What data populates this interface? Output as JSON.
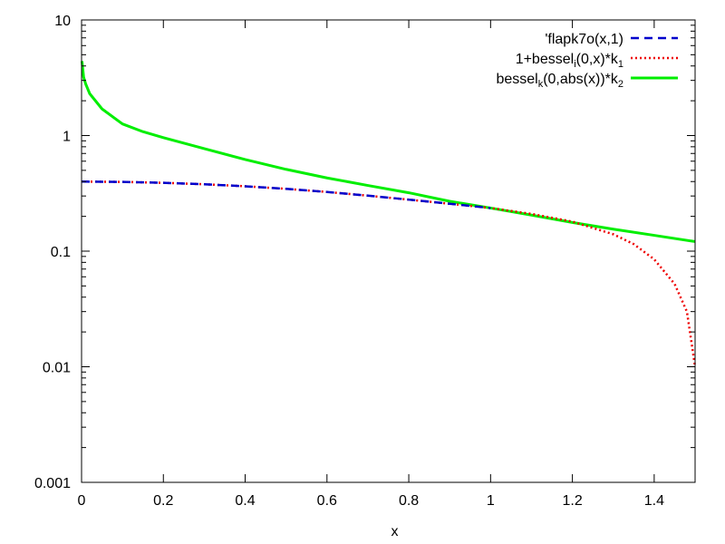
{
  "chart_data": {
    "type": "line",
    "title": "",
    "xlabel": "x",
    "ylabel": "",
    "xlim": [
      0,
      1.5
    ],
    "ylim": [
      0.001,
      10
    ],
    "yscale": "log",
    "grid": false,
    "legend_position": "top-right",
    "x_ticks": [
      0,
      0.2,
      0.4,
      0.6,
      0.8,
      1.0,
      1.2,
      1.4
    ],
    "x_tick_labels": [
      "0",
      "0.2",
      "0.4",
      "0.6",
      "0.8",
      "1",
      "1.2",
      "1.4"
    ],
    "y_ticks": [
      0.001,
      0.01,
      0.1,
      1,
      10
    ],
    "y_tick_labels": [
      "0.001",
      "0.01",
      "0.1",
      "1",
      "10"
    ],
    "series": [
      {
        "name": "'flapk7o(x,1)",
        "color": "#0000cc",
        "style": "dashed",
        "x": [
          0,
          0.1,
          0.2,
          0.3,
          0.4,
          0.5,
          0.6,
          0.7,
          0.8,
          0.9,
          1.0
        ],
        "y": [
          0.4,
          0.397,
          0.39,
          0.379,
          0.364,
          0.346,
          0.325,
          0.302,
          0.279,
          0.257,
          0.236
        ]
      },
      {
        "name": "1+bessel",
        "name_sub": "i",
        "name_rest": "(0,x)*k",
        "name_sub2": "1",
        "color": "#ee0000",
        "style": "dotted",
        "x": [
          0,
          0.1,
          0.2,
          0.3,
          0.4,
          0.5,
          0.6,
          0.7,
          0.8,
          0.9,
          1.0,
          1.1,
          1.2,
          1.3,
          1.35,
          1.4,
          1.45,
          1.48,
          1.5
        ],
        "y": [
          0.4,
          0.397,
          0.39,
          0.379,
          0.364,
          0.346,
          0.325,
          0.302,
          0.279,
          0.257,
          0.236,
          0.21,
          0.18,
          0.14,
          0.115,
          0.085,
          0.052,
          0.03,
          0.01
        ]
      },
      {
        "name": "bessel",
        "name_sub": "k",
        "name_rest": "(0,abs(x))*k",
        "name_sub2": "2",
        "color": "#00ee00",
        "style": "solid",
        "x": [
          0.001,
          0.005,
          0.01,
          0.02,
          0.05,
          0.1,
          0.15,
          0.2,
          0.3,
          0.4,
          0.5,
          0.6,
          0.7,
          0.8,
          0.9,
          1.0,
          1.1,
          1.2,
          1.3,
          1.4,
          1.5
        ],
        "y": [
          4.4,
          3.2,
          2.8,
          2.3,
          1.7,
          1.26,
          1.08,
          0.96,
          0.77,
          0.62,
          0.51,
          0.43,
          0.37,
          0.32,
          0.27,
          0.236,
          0.205,
          0.177,
          0.155,
          0.137,
          0.121
        ]
      }
    ]
  }
}
